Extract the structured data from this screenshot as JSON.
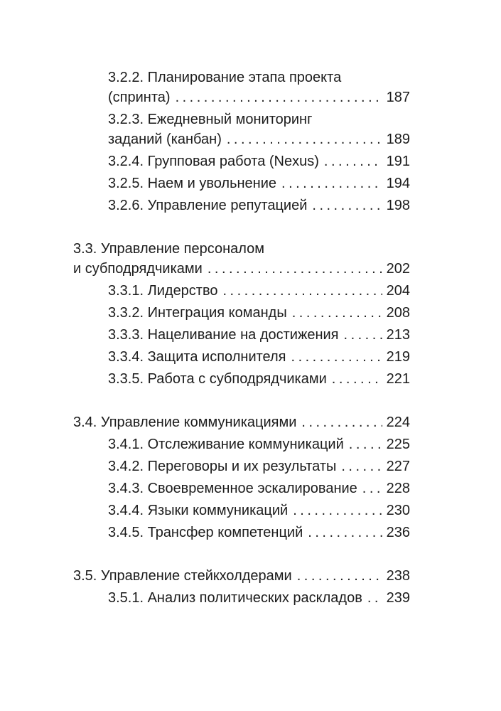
{
  "page": {
    "background": "#ffffff",
    "text_color": "#1c1c1c"
  },
  "toc": {
    "entries": [
      {
        "level": 2,
        "lines": [
          "3.2.2. Планирование этапа проекта",
          "(спринта)"
        ],
        "page": "187"
      },
      {
        "level": 2,
        "lines": [
          "3.2.3. Ежедневный мониторинг",
          "заданий (канбан)"
        ],
        "page": "189"
      },
      {
        "level": 2,
        "lines": [
          "3.2.4. Групповая работа (Nexus)"
        ],
        "page": "191"
      },
      {
        "level": 2,
        "lines": [
          "3.2.5. Наем и увольнение"
        ],
        "page": "194"
      },
      {
        "level": 2,
        "lines": [
          "3.2.6. Управление репутацией"
        ],
        "page": "198"
      },
      {
        "level": 1,
        "lines": [
          "3.3. Управление персоналом",
          "и субподрядчиками"
        ],
        "page": "202"
      },
      {
        "level": 2,
        "lines": [
          "3.3.1. Лидерство"
        ],
        "page": "204"
      },
      {
        "level": 2,
        "lines": [
          "3.3.2. Интеграция команды"
        ],
        "page": "208"
      },
      {
        "level": 2,
        "lines": [
          "3.3.3. Нацеливание на достижения"
        ],
        "page": "213"
      },
      {
        "level": 2,
        "lines": [
          "3.3.4. Защита исполнителя"
        ],
        "page": "219"
      },
      {
        "level": 2,
        "lines": [
          "3.3.5. Работа с субподрядчиками"
        ],
        "page": "221"
      },
      {
        "level": 1,
        "lines": [
          "3.4. Управление коммуникациями"
        ],
        "page": "224"
      },
      {
        "level": 2,
        "lines": [
          "3.4.1. Отслеживание коммуникаций"
        ],
        "page": "225"
      },
      {
        "level": 2,
        "lines": [
          "3.4.2. Переговоры и их результаты"
        ],
        "page": "227"
      },
      {
        "level": 2,
        "lines": [
          "3.4.3. Своевременное эскалирование"
        ],
        "page": "228"
      },
      {
        "level": 2,
        "lines": [
          "3.4.4. Языки коммуникаций"
        ],
        "page": "230"
      },
      {
        "level": 2,
        "lines": [
          "3.4.5. Трансфер компетенций"
        ],
        "page": "236"
      },
      {
        "level": 1,
        "lines": [
          "3.5. Управление стейкхолдерами"
        ],
        "page": "238"
      },
      {
        "level": 2,
        "lines": [
          "3.5.1. Анализ политических раскладов"
        ],
        "page": "239"
      }
    ]
  }
}
